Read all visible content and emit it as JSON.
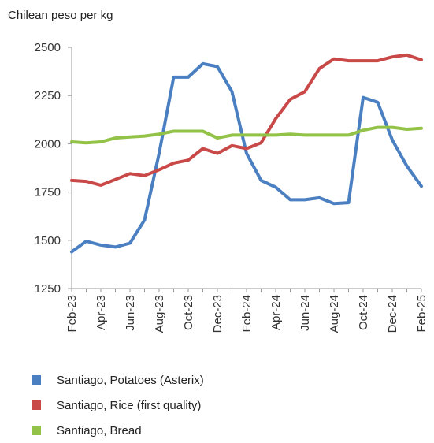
{
  "chart_data": {
    "type": "line",
    "unit_label": "Chilean peso per kg",
    "ylim": [
      1250,
      2500
    ],
    "yticks": [
      1250,
      1500,
      1750,
      2000,
      2250,
      2500
    ],
    "x": [
      "Feb-23",
      "Mar-23",
      "Apr-23",
      "May-23",
      "Jun-23",
      "Jul-23",
      "Aug-23",
      "Sep-23",
      "Oct-23",
      "Nov-23",
      "Dec-23",
      "Jan-24",
      "Feb-24",
      "Mar-24",
      "Apr-24",
      "May-24",
      "Jun-24",
      "Jul-24",
      "Aug-24",
      "Sep-24",
      "Oct-24",
      "Nov-24",
      "Dec-24",
      "Jan-25",
      "Feb-25"
    ],
    "xticks": [
      "Feb-23",
      "Apr-23",
      "Jun-23",
      "Aug-23",
      "Oct-23",
      "Dec-23",
      "Feb-24",
      "Apr-24",
      "Jun-24",
      "Aug-24",
      "Oct-24",
      "Dec-24",
      "Feb-25"
    ],
    "grid": false,
    "legend_position": "bottom",
    "series": [
      {
        "name": "Santiago, Potatoes (Asterix)",
        "color": "#4a7fc1",
        "values": [
          1440,
          1495,
          1475,
          1465,
          1485,
          1605,
          1950,
          2345,
          2345,
          2415,
          2400,
          2270,
          1950,
          1810,
          1775,
          1710,
          1710,
          1720,
          1690,
          1695,
          2240,
          2215,
          2020,
          1885,
          1780
        ]
      },
      {
        "name": "Santiago, Rice (first quality)",
        "color": "#c94848",
        "values": [
          1810,
          1805,
          1785,
          1815,
          1845,
          1835,
          1865,
          1900,
          1915,
          1975,
          1950,
          1990,
          1975,
          2005,
          2130,
          2230,
          2270,
          2390,
          2440,
          2430,
          2430,
          2430,
          2450,
          2460,
          2435
        ]
      },
      {
        "name": "Santiago, Bread",
        "color": "#93c248",
        "values": [
          2010,
          2005,
          2010,
          2030,
          2035,
          2040,
          2050,
          2065,
          2065,
          2065,
          2030,
          2045,
          2045,
          2045,
          2045,
          2050,
          2045,
          2045,
          2045,
          2045,
          2070,
          2085,
          2085,
          2075,
          2080
        ]
      }
    ]
  }
}
